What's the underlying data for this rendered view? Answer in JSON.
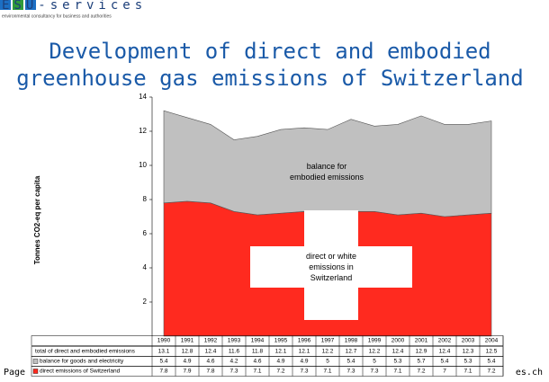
{
  "header": {
    "logo": "ESU-services",
    "tagline": "environmental consultancy for business and authorities"
  },
  "title": [
    "Development of direct and embodied",
    "greenhouse gas emissions of Switzerland"
  ],
  "footer": {
    "left": "Page",
    "right": "es.ch"
  },
  "chart_data": {
    "type": "stacked-area",
    "y_label": "Tonnes CO2-eq per capita",
    "categories": [
      "1990",
      "1991",
      "1992",
      "1993",
      "1994",
      "1995",
      "1996",
      "1997",
      "1998",
      "1999",
      "2000",
      "2001",
      "2002",
      "2003",
      "2004"
    ],
    "series": [
      {
        "name": "direct emissions of Switzerland",
        "color": "#ff2a1f",
        "values": [
          7.8,
          7.9,
          7.8,
          7.3,
          7.1,
          7.2,
          7.3,
          7.1,
          7.3,
          7.3,
          7.1,
          7.2,
          7.0,
          7.1,
          7.2
        ]
      },
      {
        "name": "balance for goods and electricity",
        "color": "#c0c0c0",
        "values": [
          5.4,
          4.9,
          4.6,
          4.2,
          4.6,
          4.9,
          4.9,
          5.0,
          5.4,
          5.0,
          5.3,
          5.7,
          5.4,
          5.3,
          5.4
        ]
      }
    ],
    "totals_name": "total of direct and embodied emissions",
    "totals": [
      13.1,
      12.8,
      12.4,
      11.6,
      11.8,
      12.1,
      12.1,
      12.2,
      12.7,
      12.2,
      12.4,
      12.9,
      12.4,
      12.3,
      12.5
    ],
    "annotations": [
      "balance for embodied emissions",
      "direct or white emissions in Switzerland"
    ],
    "ylim": [
      0,
      14
    ],
    "yticks": [
      2,
      4,
      6,
      8,
      10,
      12,
      14
    ]
  }
}
